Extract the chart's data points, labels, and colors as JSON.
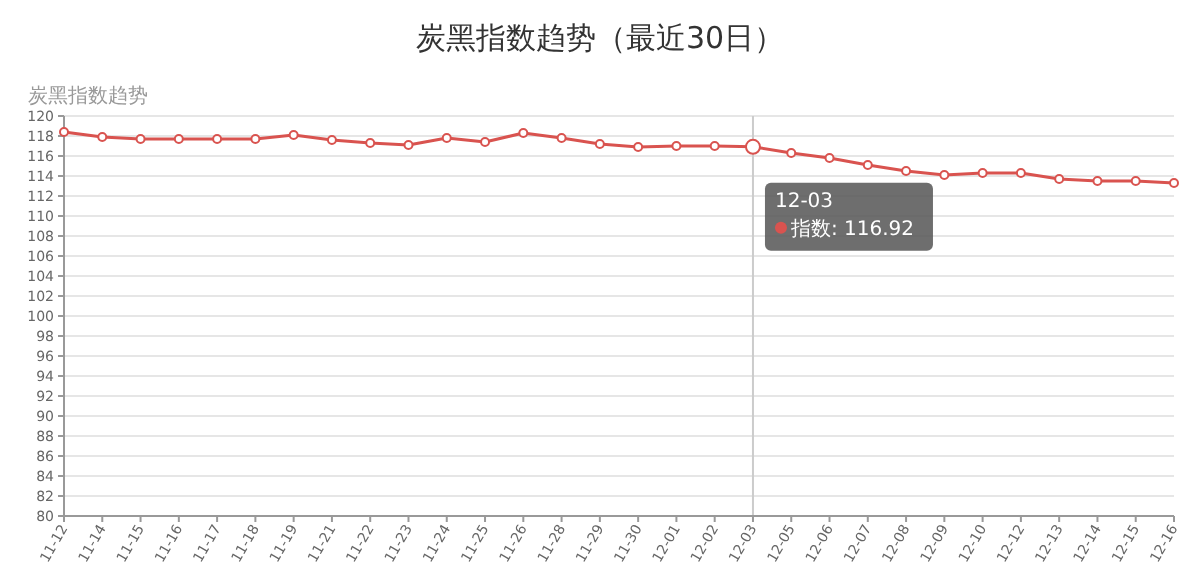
{
  "chart_data": {
    "type": "line",
    "title": "炭黑指数趋势（最近30日）",
    "ylabel": "炭黑指数趋势",
    "categories": [
      "11-12",
      "11-14",
      "11-15",
      "11-16",
      "11-17",
      "11-18",
      "11-19",
      "11-21",
      "11-22",
      "11-23",
      "11-24",
      "11-25",
      "11-26",
      "11-28",
      "11-29",
      "11-30",
      "12-01",
      "12-02",
      "12-03",
      "12-05",
      "12-06",
      "12-07",
      "12-08",
      "12-09",
      "12-10",
      "12-12",
      "12-13",
      "12-14",
      "12-15",
      "12-16"
    ],
    "series": [
      {
        "color": "#d9534f",
        "values": [
          118.4,
          117.9,
          117.7,
          117.7,
          117.7,
          117.7,
          118.1,
          117.6,
          117.3,
          117.1,
          117.8,
          117.4,
          118.3,
          117.8,
          117.2,
          116.9,
          117.0,
          117.0,
          116.92,
          116.3,
          115.8,
          115.1,
          114.5,
          114.1,
          114.3,
          114.3,
          113.7,
          113.5,
          113.5,
          113.3
        ]
      }
    ],
    "ylim": [
      80,
      120
    ],
    "yticks": [
      80,
      82,
      84,
      86,
      88,
      90,
      92,
      94,
      96,
      98,
      100,
      102,
      104,
      106,
      108,
      110,
      112,
      114,
      116,
      118,
      120
    ],
    "grid": "y",
    "marker": "circle",
    "line_style": "solid",
    "ref_lines": [
      {
        "axis": "x",
        "value": "12-03",
        "color": "#cccccc"
      }
    ],
    "annotations": [
      {
        "text": "12-03\n指数: 116.92",
        "x": "12-03",
        "y": 116.92
      }
    ]
  }
}
